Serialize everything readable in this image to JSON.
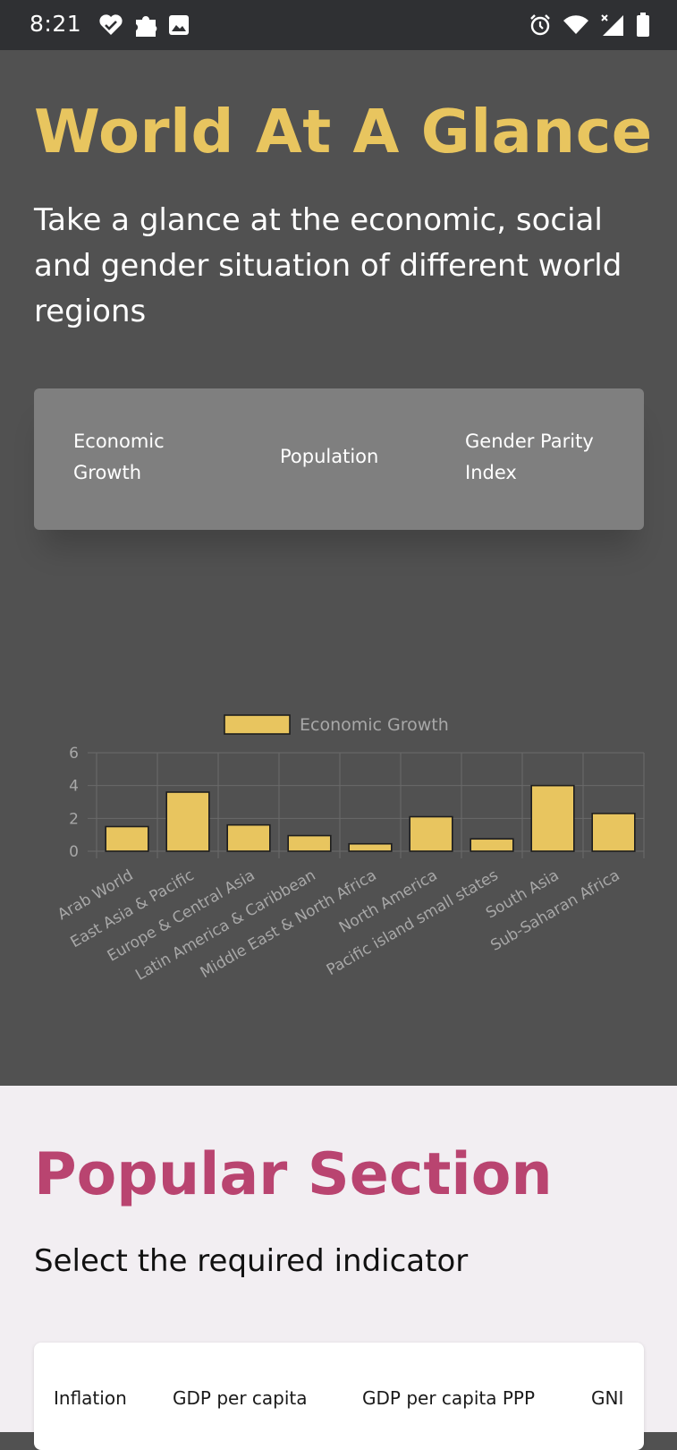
{
  "status_bar": {
    "time": "8:21",
    "left_icons": [
      "heart-check-icon",
      "puzzle-icon",
      "image-icon"
    ],
    "right_icons": [
      "alarm-icon",
      "wifi-icon",
      "signal-icon",
      "battery-icon"
    ]
  },
  "hero": {
    "title": "World At A Glance",
    "subtitle": "Take a glance at the economic, social and gender situation of different world regions",
    "accent_color": "#e8c55f",
    "tabs": [
      {
        "label": "Economic Growth"
      },
      {
        "label": "Population"
      },
      {
        "label": "Gender Parity Index"
      }
    ]
  },
  "chart_data": {
    "type": "bar",
    "categories": [
      "Arab World",
      "East Asia & Pacific",
      "Europe & Central Asia",
      "Latin America & Caribbean",
      "Middle East & North Africa",
      "North America",
      "Pacific island small states",
      "South Asia",
      "Sub-Saharan Africa"
    ],
    "series": [
      {
        "name": "Economic Growth",
        "values": [
          1.5,
          3.6,
          1.6,
          0.95,
          0.45,
          2.1,
          0.75,
          4.0,
          2.3
        ],
        "color": "#e8c55f"
      }
    ],
    "yticks": [
      "0",
      "2",
      "4",
      "6"
    ],
    "ylim": [
      0,
      6
    ],
    "grid": true,
    "legend": "top"
  },
  "popular": {
    "title": "Popular Section",
    "subtitle": "Select the required indicator",
    "title_color": "#b94470",
    "indicators": [
      {
        "label": "Inflation"
      },
      {
        "label": "GDP per capita"
      },
      {
        "label": "GDP per capita PPP"
      },
      {
        "label": "GNI"
      }
    ]
  }
}
